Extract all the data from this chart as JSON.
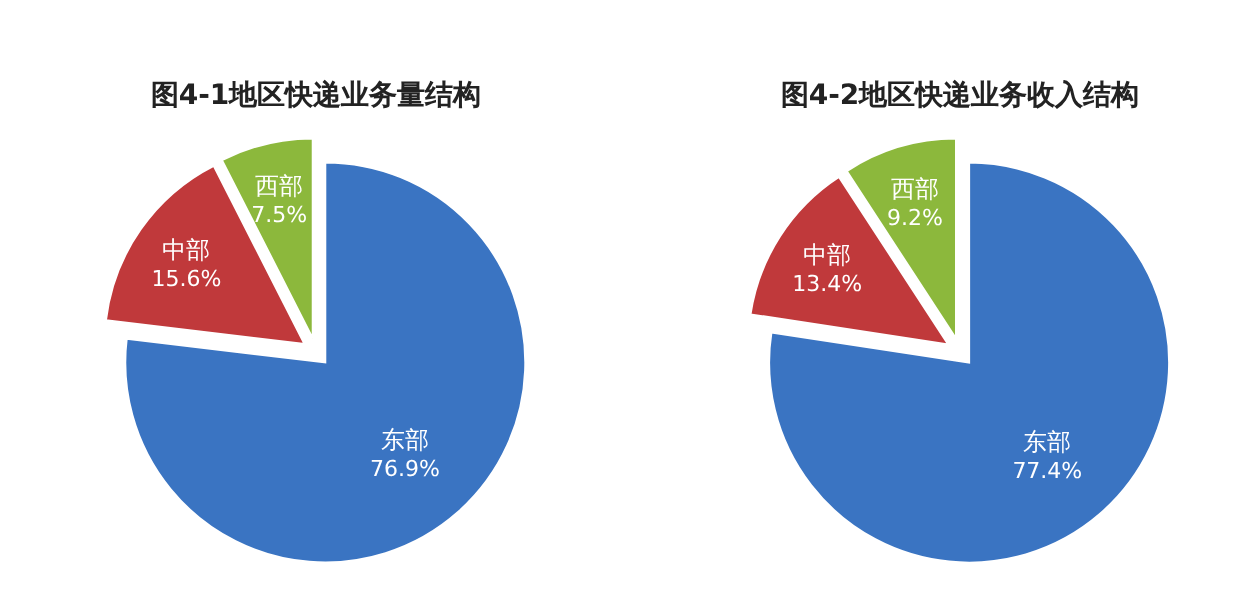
{
  "chart_data": [
    {
      "type": "pie",
      "title": "图4-1地区快递业务量结构",
      "categories": [
        "东部",
        "中部",
        "西部"
      ],
      "values": [
        76.9,
        15.6,
        7.5
      ],
      "colors": [
        "#3a74c2",
        "#c0393b",
        "#8cb83c"
      ],
      "value_labels": [
        "76.9%",
        "15.6%",
        "7.5%"
      ]
    },
    {
      "type": "pie",
      "title": "图4-2地区快递业务收入结构",
      "categories": [
        "东部",
        "中部",
        "西部"
      ],
      "values": [
        77.4,
        13.4,
        9.2
      ],
      "colors": [
        "#3a74c2",
        "#c0393b",
        "#8cb83c"
      ],
      "value_labels": [
        "77.4%",
        "13.4%",
        "9.2%"
      ]
    }
  ]
}
